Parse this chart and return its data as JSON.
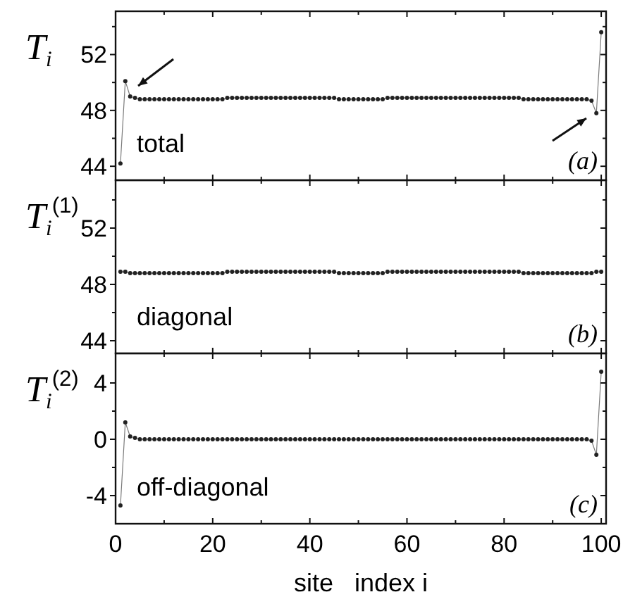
{
  "chart_data": [
    {
      "type": "line",
      "ylabel": "T$_{i}$",
      "xlim": [
        0,
        101
      ],
      "xticks": [
        {
          "value": 0,
          "label": null
        },
        {
          "value": 10,
          "label": null
        },
        {
          "value": 20,
          "label": null
        },
        {
          "value": 30,
          "label": null
        },
        {
          "value": 40,
          "label": null
        },
        {
          "value": 50,
          "label": null
        },
        {
          "value": 60,
          "label": null
        },
        {
          "value": 70,
          "label": null
        },
        {
          "value": 80,
          "label": null
        },
        {
          "value": 90,
          "label": null
        },
        {
          "value": 100,
          "label": null
        }
      ],
      "ylim": [
        43,
        55.1
      ],
      "yticks": [
        44,
        {
          "value": 46,
          "label": null
        },
        48,
        {
          "value": 50,
          "label": null
        },
        52,
        {
          "value": 54,
          "label": null
        }
      ],
      "tick_labels": "y",
      "marker": "circle",
      "annotations": [
        "total",
        "(a)"
      ],
      "x": [
        1,
        2,
        3,
        4,
        5,
        6,
        7,
        8,
        9,
        10,
        11,
        12,
        13,
        14,
        15,
        16,
        17,
        18,
        19,
        20,
        21,
        22,
        23,
        24,
        25,
        26,
        27,
        28,
        29,
        30,
        31,
        32,
        33,
        34,
        35,
        36,
        37,
        38,
        39,
        40,
        41,
        42,
        43,
        44,
        45,
        46,
        47,
        48,
        49,
        50,
        51,
        52,
        53,
        54,
        55,
        56,
        57,
        58,
        59,
        60,
        61,
        62,
        63,
        64,
        65,
        66,
        67,
        68,
        69,
        70,
        71,
        72,
        73,
        74,
        75,
        76,
        77,
        78,
        79,
        80,
        81,
        82,
        83,
        84,
        85,
        86,
        87,
        88,
        89,
        90,
        91,
        92,
        93,
        94,
        95,
        96,
        97,
        98,
        99,
        100
      ],
      "series": [
        {
          "color": "#222222",
          "values": [
            44.2,
            50.1,
            49.0,
            48.9,
            48.8,
            48.8,
            48.8,
            48.8,
            48.8,
            48.8,
            48.8,
            48.8,
            48.8,
            48.8,
            48.8,
            48.8,
            48.8,
            48.8,
            48.8,
            48.8,
            48.8,
            48.8,
            48.9,
            48.9,
            48.9,
            48.9,
            48.9,
            48.9,
            48.9,
            48.9,
            48.9,
            48.9,
            48.9,
            48.9,
            48.9,
            48.9,
            48.9,
            48.9,
            48.9,
            48.9,
            48.9,
            48.9,
            48.9,
            48.9,
            48.9,
            48.8,
            48.8,
            48.8,
            48.8,
            48.8,
            48.8,
            48.8,
            48.8,
            48.8,
            48.8,
            48.9,
            48.9,
            48.9,
            48.9,
            48.9,
            48.9,
            48.9,
            48.9,
            48.9,
            48.9,
            48.9,
            48.9,
            48.9,
            48.9,
            48.9,
            48.9,
            48.9,
            48.9,
            48.9,
            48.9,
            48.9,
            48.9,
            48.9,
            48.9,
            48.9,
            48.9,
            48.9,
            48.9,
            48.8,
            48.8,
            48.8,
            48.8,
            48.8,
            48.8,
            48.8,
            48.8,
            48.8,
            48.8,
            48.8,
            48.8,
            48.8,
            48.8,
            48.7,
            47.8,
            53.6
          ]
        }
      ]
    },
    {
      "type": "line",
      "ylabel": "T$_{i}$$^{(1)}$",
      "xlim": [
        0,
        101
      ],
      "xticks": [
        {
          "value": 0,
          "label": null
        },
        {
          "value": 10,
          "label": null
        },
        {
          "value": 20,
          "label": null
        },
        {
          "value": 30,
          "label": null
        },
        {
          "value": 40,
          "label": null
        },
        {
          "value": 50,
          "label": null
        },
        {
          "value": 60,
          "label": null
        },
        {
          "value": 70,
          "label": null
        },
        {
          "value": 80,
          "label": null
        },
        {
          "value": 90,
          "label": null
        },
        {
          "value": 100,
          "label": null
        }
      ],
      "ylim": [
        43.1,
        55.4
      ],
      "yticks": [
        44,
        {
          "value": 46,
          "label": null
        },
        48,
        {
          "value": 50,
          "label": null
        },
        52,
        {
          "value": 54,
          "label": null
        }
      ],
      "tick_labels": "y",
      "marker": "circle",
      "annotations": [
        "diagonal",
        "(b)"
      ],
      "x": [
        1,
        2,
        3,
        4,
        5,
        6,
        7,
        8,
        9,
        10,
        11,
        12,
        13,
        14,
        15,
        16,
        17,
        18,
        19,
        20,
        21,
        22,
        23,
        24,
        25,
        26,
        27,
        28,
        29,
        30,
        31,
        32,
        33,
        34,
        35,
        36,
        37,
        38,
        39,
        40,
        41,
        42,
        43,
        44,
        45,
        46,
        47,
        48,
        49,
        50,
        51,
        52,
        53,
        54,
        55,
        56,
        57,
        58,
        59,
        60,
        61,
        62,
        63,
        64,
        65,
        66,
        67,
        68,
        69,
        70,
        71,
        72,
        73,
        74,
        75,
        76,
        77,
        78,
        79,
        80,
        81,
        82,
        83,
        84,
        85,
        86,
        87,
        88,
        89,
        90,
        91,
        92,
        93,
        94,
        95,
        96,
        97,
        98,
        99,
        100
      ],
      "series": [
        {
          "color": "#222222",
          "values": [
            48.9,
            48.9,
            48.8,
            48.8,
            48.8,
            48.8,
            48.8,
            48.8,
            48.8,
            48.8,
            48.8,
            48.8,
            48.8,
            48.8,
            48.8,
            48.8,
            48.8,
            48.8,
            48.8,
            48.8,
            48.8,
            48.8,
            48.9,
            48.9,
            48.9,
            48.9,
            48.9,
            48.9,
            48.9,
            48.9,
            48.9,
            48.9,
            48.9,
            48.9,
            48.9,
            48.9,
            48.9,
            48.9,
            48.9,
            48.9,
            48.9,
            48.9,
            48.9,
            48.9,
            48.9,
            48.8,
            48.8,
            48.8,
            48.8,
            48.8,
            48.8,
            48.8,
            48.8,
            48.8,
            48.8,
            48.9,
            48.9,
            48.9,
            48.9,
            48.9,
            48.9,
            48.9,
            48.9,
            48.9,
            48.9,
            48.9,
            48.9,
            48.9,
            48.9,
            48.9,
            48.9,
            48.9,
            48.9,
            48.9,
            48.9,
            48.9,
            48.9,
            48.9,
            48.9,
            48.9,
            48.9,
            48.9,
            48.9,
            48.8,
            48.8,
            48.8,
            48.8,
            48.8,
            48.8,
            48.8,
            48.8,
            48.8,
            48.8,
            48.8,
            48.8,
            48.8,
            48.8,
            48.8,
            48.9,
            48.9
          ]
        }
      ]
    },
    {
      "type": "line",
      "ylabel": "T$_{i}$$^{(2)}$",
      "xlabel": "site   index i",
      "xlim": [
        0,
        101
      ],
      "xticks": [
        0,
        {
          "value": 10,
          "label": null
        },
        20,
        {
          "value": 30,
          "label": null
        },
        40,
        {
          "value": 50,
          "label": null
        },
        60,
        {
          "value": 70,
          "label": null
        },
        80,
        {
          "value": 90,
          "label": null
        },
        100
      ],
      "ylim": [
        -6,
        6.1
      ],
      "yticks": [
        -4,
        {
          "value": -2,
          "label": null
        },
        0,
        {
          "value": 2,
          "label": null
        },
        4
      ],
      "marker": "circle",
      "annotations": [
        "off-diagonal",
        "(c)"
      ],
      "x": [
        1,
        2,
        3,
        4,
        5,
        6,
        7,
        8,
        9,
        10,
        11,
        12,
        13,
        14,
        15,
        16,
        17,
        18,
        19,
        20,
        21,
        22,
        23,
        24,
        25,
        26,
        27,
        28,
        29,
        30,
        31,
        32,
        33,
        34,
        35,
        36,
        37,
        38,
        39,
        40,
        41,
        42,
        43,
        44,
        45,
        46,
        47,
        48,
        49,
        50,
        51,
        52,
        53,
        54,
        55,
        56,
        57,
        58,
        59,
        60,
        61,
        62,
        63,
        64,
        65,
        66,
        67,
        68,
        69,
        70,
        71,
        72,
        73,
        74,
        75,
        76,
        77,
        78,
        79,
        80,
        81,
        82,
        83,
        84,
        85,
        86,
        87,
        88,
        89,
        90,
        91,
        92,
        93,
        94,
        95,
        96,
        97,
        98,
        99,
        100
      ],
      "series": [
        {
          "color": "#222222",
          "values": [
            -4.7,
            1.2,
            0.2,
            0.1,
            0.0,
            0.0,
            0.0,
            0.0,
            0.0,
            0.0,
            0.0,
            0.0,
            0.0,
            0.0,
            0.0,
            0.0,
            0.0,
            0.0,
            0.0,
            0.0,
            0.0,
            0.0,
            0.0,
            0.0,
            0.0,
            0.0,
            0.0,
            0.0,
            0.0,
            0.0,
            0.0,
            0.0,
            0.0,
            0.0,
            0.0,
            0.0,
            0.0,
            0.0,
            0.0,
            0.0,
            0.0,
            0.0,
            0.0,
            0.0,
            0.0,
            0.0,
            0.0,
            0.0,
            0.0,
            0.0,
            0.0,
            0.0,
            0.0,
            0.0,
            0.0,
            0.0,
            0.0,
            0.0,
            0.0,
            0.0,
            0.0,
            0.0,
            0.0,
            0.0,
            0.0,
            0.0,
            0.0,
            0.0,
            0.0,
            0.0,
            0.0,
            0.0,
            0.0,
            0.0,
            0.0,
            0.0,
            0.0,
            0.0,
            0.0,
            0.0,
            0.0,
            0.0,
            0.0,
            0.0,
            0.0,
            0.0,
            0.0,
            0.0,
            0.0,
            0.0,
            0.0,
            0.0,
            0.0,
            0.0,
            0.0,
            0.0,
            0.0,
            -0.1,
            -1.1,
            4.8
          ]
        }
      ]
    }
  ]
}
